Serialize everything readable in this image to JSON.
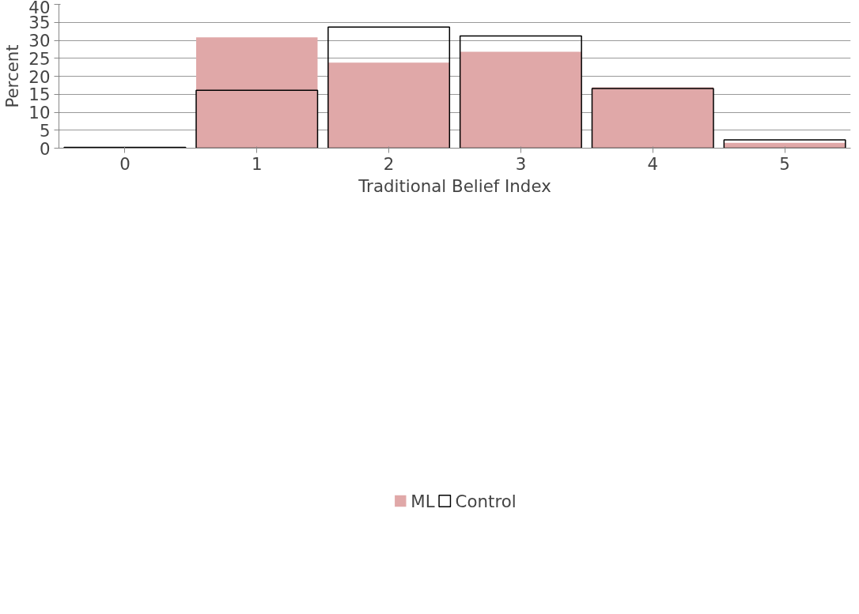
{
  "chart_data": {
    "type": "bar",
    "xlabel": "Traditional Belief Index",
    "ylabel": "Percent",
    "categories": [
      "0",
      "1",
      "2",
      "3",
      "4",
      "5"
    ],
    "series": [
      {
        "name": "ML",
        "color": "#e0a8a8",
        "values": [
          0,
          30.8,
          23.8,
          26.8,
          16.9,
          1.5
        ]
      },
      {
        "name": "Control",
        "color": "#000000",
        "values": [
          0.2,
          16.1,
          33.7,
          31.2,
          16.6,
          2.3
        ]
      }
    ],
    "ylim": [
      0,
      40
    ],
    "yticks": [
      0,
      5,
      10,
      15,
      20,
      25,
      30,
      35,
      40
    ],
    "grid": "y",
    "legend": "bottom"
  }
}
